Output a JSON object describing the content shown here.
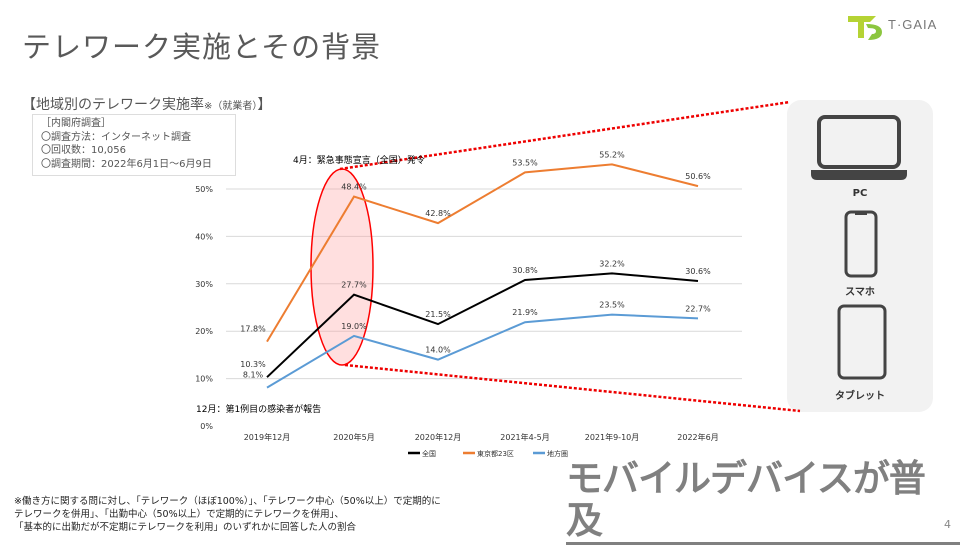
{
  "title": "テレワーク実施とその背景",
  "logo": {
    "text": "T·GAIA",
    "colors": {
      "green": "#8cc63f",
      "yellow": "#d9e021"
    }
  },
  "chart_heading": {
    "main": "【地域別のテレワーク実施率",
    "note": "※（就業者）",
    "close": "】"
  },
  "survey": {
    "title": "［内閣府調査］",
    "method": "〇調査方法：インターネット調査",
    "responses": "〇回収数：10,056",
    "period": "〇調査期間：2022年6月1日～6月9日"
  },
  "annotations": {
    "april": "4月：緊急事態宣言（全国）発令",
    "december": "12月：第1例目の感染者が報告"
  },
  "chart_data": {
    "type": "line",
    "categories": [
      "2019年12月",
      "2020年5月",
      "2020年12月",
      "2021年4-5月",
      "2021年9-10月",
      "2022年6月"
    ],
    "y_ticks": [
      "0%",
      "10%",
      "20%",
      "30%",
      "40%",
      "50%"
    ],
    "ylim": [
      0,
      50
    ],
    "grid": true,
    "legend_position": "bottom",
    "series": [
      {
        "name": "全国",
        "color": "#000000",
        "values": [
          10.3,
          27.7,
          21.5,
          30.8,
          32.2,
          30.6
        ],
        "labels": [
          "10.3%",
          "27.7%",
          "21.5%",
          "30.8%",
          "32.2%",
          "30.6%"
        ]
      },
      {
        "name": "東京都23区",
        "color": "#ed7d31",
        "values": [
          17.8,
          48.4,
          42.8,
          53.5,
          55.2,
          50.6
        ],
        "labels": [
          "17.8%",
          "48.4%",
          "42.8%",
          "53.5%",
          "55.2%",
          "50.6%"
        ]
      },
      {
        "name": "地方圏",
        "color": "#5b9bd5",
        "values": [
          8.1,
          19.0,
          14.0,
          21.9,
          23.5,
          22.7
        ],
        "labels": [
          "8.1%",
          "19.0%",
          "14.0%",
          "21.9%",
          "23.5%",
          "22.7%"
        ]
      }
    ]
  },
  "devices": [
    {
      "label": "PC",
      "icon": "laptop-icon"
    },
    {
      "label": "スマホ",
      "icon": "smartphone-icon"
    },
    {
      "label": "タブレット",
      "icon": "tablet-icon"
    }
  ],
  "headline": "モバイルデバイスが普及",
  "footnote": [
    "※働き方に関する問に対し、「テレワーク（ほぼ100%）」、「テレワーク中心（50%以上）で定期的に",
    "テレワークを併用」、「出勤中心（50%以上）で定期的にテレワークを併用」、",
    "「基本的に出勤だが不定期にテレワークを利用」のいずれかに回答した人の割合"
  ],
  "page_number": "4"
}
